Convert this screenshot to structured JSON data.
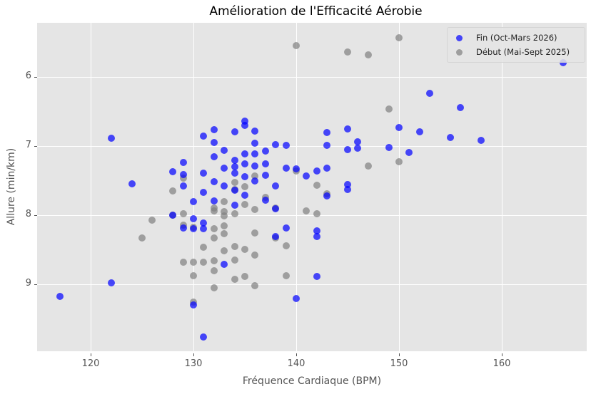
{
  "chart_data": {
    "type": "scatter",
    "title": "Amélioration de l'Efficacité Aérobie",
    "xlabel": "Fréquence Cardiaque (BPM)",
    "ylabel": "Allure (min/km)",
    "xlim": [
      114.5,
      168
    ],
    "ylim": [
      9.95,
      5.25
    ],
    "y_inverted": true,
    "grid": true,
    "legend_position": "upper right",
    "x_ticks": [
      120,
      130,
      140,
      150,
      160
    ],
    "y_ticks": [
      6,
      7,
      8,
      9
    ],
    "series": [
      {
        "name": "Fin (Oct-Mars 2026)",
        "color": "#0000ff",
        "alpha": 0.7,
        "points": [
          [
            117,
            9.18
          ],
          [
            122,
            6.89
          ],
          [
            122,
            8.98
          ],
          [
            124,
            7.55
          ],
          [
            128,
            7.37
          ],
          [
            128,
            8.0
          ],
          [
            129,
            7.24
          ],
          [
            129,
            7.41
          ],
          [
            129,
            7.58
          ],
          [
            129,
            8.19
          ],
          [
            130,
            8.2
          ],
          [
            130,
            7.8
          ],
          [
            130,
            8.05
          ],
          [
            130,
            9.3
          ],
          [
            131,
            6.86
          ],
          [
            131,
            7.39
          ],
          [
            131,
            7.67
          ],
          [
            131,
            8.11
          ],
          [
            131,
            8.2
          ],
          [
            131,
            9.76
          ],
          [
            132,
            6.76
          ],
          [
            132,
            6.95
          ],
          [
            132,
            7.15
          ],
          [
            132,
            7.52
          ],
          [
            132,
            7.79
          ],
          [
            133,
            7.06
          ],
          [
            133,
            7.32
          ],
          [
            133,
            7.58
          ],
          [
            133,
            8.71
          ],
          [
            134,
            6.79
          ],
          [
            134,
            7.21
          ],
          [
            134,
            7.3
          ],
          [
            134,
            7.39
          ],
          [
            134,
            7.64
          ],
          [
            134,
            7.86
          ],
          [
            135,
            6.64
          ],
          [
            135,
            6.7
          ],
          [
            135,
            7.11
          ],
          [
            135,
            7.26
          ],
          [
            135,
            7.44
          ],
          [
            135,
            7.71
          ],
          [
            136,
            6.78
          ],
          [
            136,
            6.96
          ],
          [
            136,
            7.11
          ],
          [
            136,
            7.29
          ],
          [
            136,
            7.51
          ],
          [
            137,
            7.07
          ],
          [
            137,
            7.26
          ],
          [
            137,
            7.42
          ],
          [
            137,
            7.78
          ],
          [
            138,
            6.98
          ],
          [
            138,
            7.58
          ],
          [
            138,
            7.91
          ],
          [
            138,
            8.31
          ],
          [
            139,
            6.99
          ],
          [
            139,
            7.32
          ],
          [
            139,
            8.19
          ],
          [
            140,
            7.33
          ],
          [
            140,
            9.21
          ],
          [
            141,
            7.43
          ],
          [
            142,
            7.36
          ],
          [
            142,
            8.23
          ],
          [
            142,
            8.31
          ],
          [
            142,
            8.89
          ],
          [
            143,
            6.8
          ],
          [
            143,
            6.99
          ],
          [
            143,
            7.32
          ],
          [
            143,
            7.72
          ],
          [
            145,
            6.75
          ],
          [
            145,
            7.05
          ],
          [
            145,
            7.56
          ],
          [
            145,
            7.63
          ],
          [
            146,
            6.94
          ],
          [
            146,
            7.03
          ],
          [
            149,
            7.02
          ],
          [
            150,
            6.73
          ],
          [
            151,
            7.09
          ],
          [
            152,
            6.79
          ],
          [
            153,
            6.24
          ],
          [
            155,
            6.88
          ],
          [
            156,
            6.44
          ],
          [
            158,
            6.92
          ],
          [
            166,
            5.79
          ]
        ]
      },
      {
        "name": "Début (Mai-Sept 2025)",
        "color": "#808080",
        "alpha": 0.7,
        "points": [
          [
            125,
            8.33
          ],
          [
            126,
            8.07
          ],
          [
            128,
            7.65
          ],
          [
            128,
            8.0
          ],
          [
            129,
            7.46
          ],
          [
            129,
            7.98
          ],
          [
            129,
            8.14
          ],
          [
            129,
            8.68
          ],
          [
            130,
            8.18
          ],
          [
            130,
            8.68
          ],
          [
            130,
            8.88
          ],
          [
            130,
            9.26
          ],
          [
            131,
            8.46
          ],
          [
            131,
            8.68
          ],
          [
            132,
            7.9
          ],
          [
            132,
            7.94
          ],
          [
            132,
            8.2
          ],
          [
            132,
            8.33
          ],
          [
            132,
            8.66
          ],
          [
            132,
            8.8
          ],
          [
            132,
            9.05
          ],
          [
            133,
            7.8
          ],
          [
            133,
            7.95
          ],
          [
            133,
            8.01
          ],
          [
            133,
            8.15
          ],
          [
            133,
            8.27
          ],
          [
            133,
            8.52
          ],
          [
            134,
            7.53
          ],
          [
            134,
            7.63
          ],
          [
            134,
            7.98
          ],
          [
            134,
            8.45
          ],
          [
            134,
            8.65
          ],
          [
            134,
            8.93
          ],
          [
            135,
            7.59
          ],
          [
            135,
            7.85
          ],
          [
            135,
            8.49
          ],
          [
            135,
            8.89
          ],
          [
            136,
            7.43
          ],
          [
            136,
            7.92
          ],
          [
            136,
            8.26
          ],
          [
            136,
            8.58
          ],
          [
            136,
            9.02
          ],
          [
            137,
            7.74
          ],
          [
            138,
            7.9
          ],
          [
            138,
            8.33
          ],
          [
            139,
            8.44
          ],
          [
            139,
            8.88
          ],
          [
            140,
            5.55
          ],
          [
            140,
            7.36
          ],
          [
            141,
            7.94
          ],
          [
            142,
            7.57
          ],
          [
            142,
            7.98
          ],
          [
            143,
            7.69
          ],
          [
            145,
            5.64
          ],
          [
            147,
            5.68
          ],
          [
            147,
            7.29
          ],
          [
            149,
            6.46
          ],
          [
            150,
            5.43
          ],
          [
            150,
            7.23
          ]
        ]
      }
    ]
  },
  "labels": {
    "title": "Amélioration de l'Efficacité Aérobie",
    "xlabel": "Fréquence Cardiaque (BPM)",
    "ylabel": "Allure (min/km)",
    "x_ticks": [
      "120",
      "130",
      "140",
      "150",
      "160"
    ],
    "y_ticks": [
      "6",
      "7",
      "8",
      "9"
    ],
    "legend": [
      "Fin (Oct-Mars 2026)",
      "Début (Mai-Sept 2025)"
    ]
  }
}
